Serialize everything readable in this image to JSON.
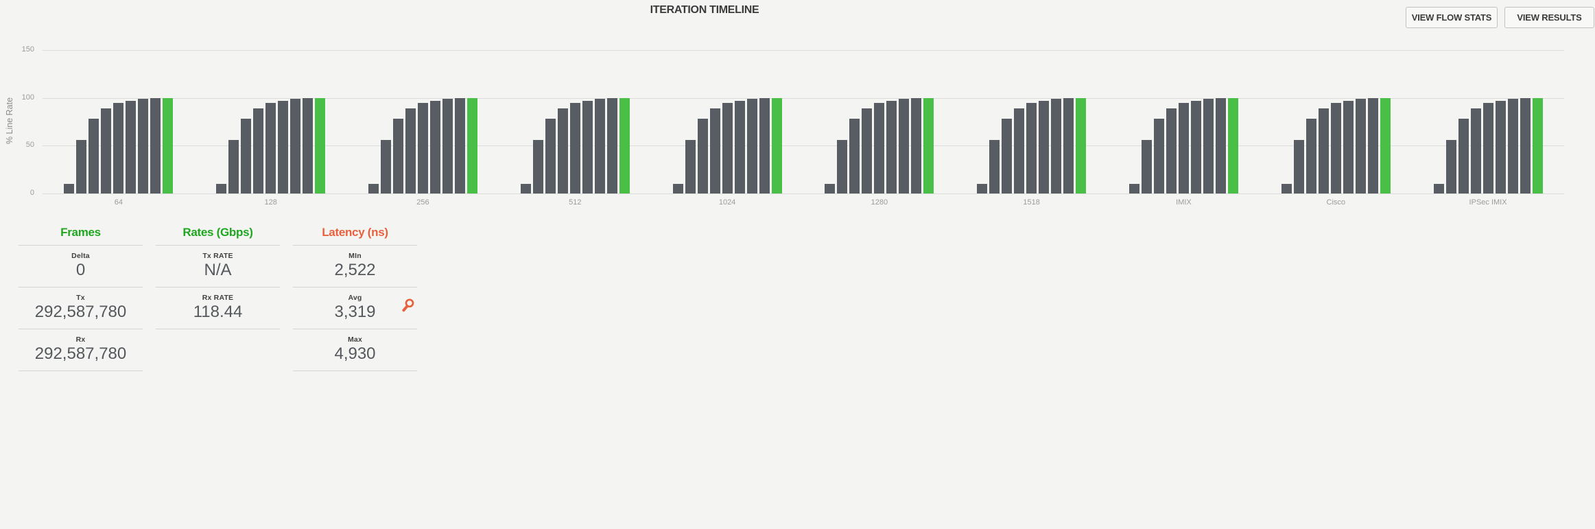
{
  "header": {
    "title": "ITERATION TIMELINE",
    "buttons": [
      {
        "label": "VIEW FLOW STATS"
      },
      {
        "label": "VIEW RESULTS"
      }
    ]
  },
  "chart_data": {
    "type": "bar",
    "title": "ITERATION TIMELINE",
    "xlabel": "",
    "ylabel": "% Line Rate",
    "ylim": [
      0,
      150
    ],
    "yticks": [
      0,
      50,
      100,
      150
    ],
    "grid": true,
    "legend": "none",
    "categories": [
      "64",
      "128",
      "256",
      "512",
      "1024",
      "1280",
      "1518",
      "IMIX",
      "Cisco",
      "IPSec IMIX"
    ],
    "bars_per_category": [
      {
        "value": 10,
        "color": "gray"
      },
      {
        "value": 56,
        "color": "gray"
      },
      {
        "value": 78,
        "color": "gray"
      },
      {
        "value": 89,
        "color": "gray"
      },
      {
        "value": 95,
        "color": "gray"
      },
      {
        "value": 97,
        "color": "gray"
      },
      {
        "value": 99,
        "color": "gray"
      },
      {
        "value": 100,
        "color": "gray"
      },
      {
        "value": 100,
        "color": "green"
      }
    ],
    "note": "Every frame-size category shows the same ascending iteration pattern of 8 gray bars ending with one green bar at 100% line rate"
  },
  "panels": {
    "frames": {
      "header": "Frames",
      "rows": [
        {
          "label": "Delta",
          "value": "0"
        },
        {
          "label": "Tx",
          "value": "292,587,780"
        },
        {
          "label": "Rx",
          "value": "292,587,780"
        }
      ]
    },
    "rates": {
      "header": "Rates (Gbps)",
      "rows": [
        {
          "label": "Tx RATE",
          "value": "N/A"
        },
        {
          "label": "Rx RATE",
          "value": "118.44"
        }
      ]
    },
    "latency": {
      "header": "Latency (ns)",
      "rows": [
        {
          "label": "MIn",
          "value": "2,522"
        },
        {
          "label": "Avg",
          "value": "3,319",
          "icon": "magnifier-icon"
        },
        {
          "label": "Max",
          "value": "4,930"
        }
      ]
    }
  },
  "colors": {
    "background": "#f4f4f3",
    "bar_gray": "#575d63",
    "bar_green": "#4abf48",
    "header_green": "#1fa71f",
    "header_orange": "#e8613c",
    "gridline": "#dbdbdb",
    "panel_rule": "#d4d4d4",
    "title_text": "#3b3b3b",
    "muted_text": "#9b9b9b",
    "value_text": "#54585c"
  }
}
